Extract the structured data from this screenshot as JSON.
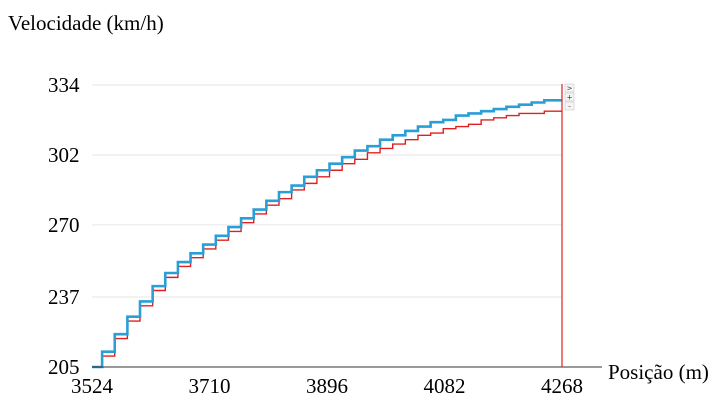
{
  "chart_data": {
    "type": "line",
    "ylabel": "Velocidade (km/h)",
    "xlabel": "Posição (m)",
    "xlim": [
      3524,
      4268
    ],
    "ylim": [
      205,
      334
    ],
    "x_ticks": [
      "3524",
      "3710",
      "3896",
      "4082",
      "4268"
    ],
    "y_ticks": [
      "205",
      "237",
      "270",
      "302",
      "334"
    ],
    "grid": "horizontal",
    "cursor_x": 4268,
    "cursor_buttons": [
      ">",
      "+",
      "-"
    ],
    "series": [
      {
        "color": "#2a9fd6",
        "points": [
          [
            3524,
            205
          ],
          [
            3540,
            212
          ],
          [
            3560,
            220
          ],
          [
            3580,
            228
          ],
          [
            3600,
            235
          ],
          [
            3620,
            242
          ],
          [
            3640,
            248
          ],
          [
            3660,
            253
          ],
          [
            3680,
            257
          ],
          [
            3700,
            261
          ],
          [
            3720,
            265
          ],
          [
            3740,
            269
          ],
          [
            3760,
            273
          ],
          [
            3780,
            277
          ],
          [
            3800,
            281
          ],
          [
            3820,
            285
          ],
          [
            3840,
            288
          ],
          [
            3860,
            292
          ],
          [
            3880,
            295
          ],
          [
            3900,
            298
          ],
          [
            3920,
            301
          ],
          [
            3940,
            304
          ],
          [
            3960,
            306
          ],
          [
            3980,
            309
          ],
          [
            4000,
            311
          ],
          [
            4020,
            313
          ],
          [
            4040,
            315
          ],
          [
            4060,
            317
          ],
          [
            4080,
            318
          ],
          [
            4100,
            320
          ],
          [
            4120,
            321
          ],
          [
            4140,
            322
          ],
          [
            4160,
            323
          ],
          [
            4180,
            324
          ],
          [
            4200,
            325
          ],
          [
            4220,
            326
          ],
          [
            4240,
            327
          ],
          [
            4268,
            327
          ]
        ]
      },
      {
        "color": "#e02020",
        "points": [
          [
            3524,
            205
          ],
          [
            3540,
            210
          ],
          [
            3560,
            218
          ],
          [
            3580,
            226
          ],
          [
            3600,
            233
          ],
          [
            3620,
            240
          ],
          [
            3640,
            246
          ],
          [
            3660,
            251
          ],
          [
            3680,
            255
          ],
          [
            3700,
            259
          ],
          [
            3720,
            263
          ],
          [
            3740,
            267
          ],
          [
            3760,
            271
          ],
          [
            3780,
            275
          ],
          [
            3800,
            279
          ],
          [
            3820,
            282
          ],
          [
            3840,
            286
          ],
          [
            3860,
            289
          ],
          [
            3880,
            292
          ],
          [
            3900,
            295
          ],
          [
            3920,
            298
          ],
          [
            3940,
            300
          ],
          [
            3960,
            303
          ],
          [
            3980,
            305
          ],
          [
            4000,
            307
          ],
          [
            4020,
            309
          ],
          [
            4040,
            311
          ],
          [
            4060,
            312
          ],
          [
            4080,
            314
          ],
          [
            4100,
            315
          ],
          [
            4120,
            316
          ],
          [
            4140,
            318
          ],
          [
            4160,
            319
          ],
          [
            4180,
            320
          ],
          [
            4200,
            321
          ],
          [
            4220,
            321
          ],
          [
            4240,
            322
          ],
          [
            4268,
            322
          ]
        ]
      }
    ]
  }
}
